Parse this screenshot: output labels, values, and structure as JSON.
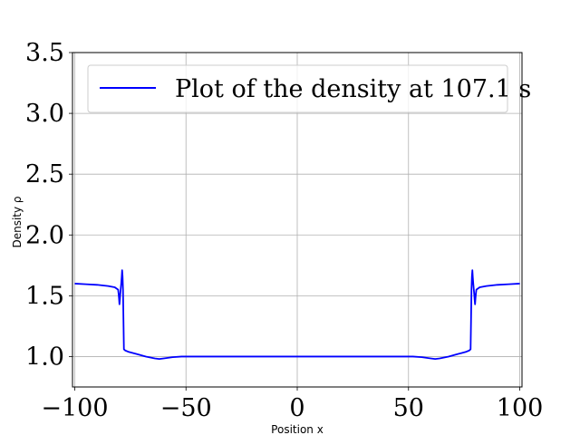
{
  "chart_data": {
    "type": "line",
    "title": "",
    "xlabel": "Position x",
    "ylabel": "Density ρ",
    "xlim": [
      -101,
      101
    ],
    "ylim": [
      0.75,
      3.5
    ],
    "xticks": [
      -100,
      -50,
      0,
      50,
      100
    ],
    "xtick_labels": [
      "−100",
      "−50",
      "0",
      "50",
      "100"
    ],
    "yticks": [
      1.0,
      1.5,
      2.0,
      2.5,
      3.0,
      3.5
    ],
    "ytick_labels": [
      "1.0",
      "1.5",
      "2.0",
      "2.5",
      "3.0",
      "3.5"
    ],
    "grid": true,
    "legend_position": "top-right",
    "series": [
      {
        "name": "Plot of the density at 107.1 s",
        "color": "#0000ff",
        "x": [
          -100,
          -95,
          -90,
          -85,
          -82,
          -80.5,
          -80.3,
          -80.1,
          -79.9,
          -79.7,
          -79.5,
          -79.3,
          -79.1,
          -78.9,
          -78.7,
          -78.5,
          -78.3,
          -78.1,
          -77.9,
          -77.6,
          -77.3,
          -76,
          -72,
          -68,
          -64,
          -62,
          -60,
          -56,
          -52,
          -48,
          -40,
          -20,
          0,
          20,
          40,
          48,
          52,
          56,
          60,
          62,
          64,
          68,
          72,
          76,
          77.3,
          77.6,
          77.9,
          78.1,
          78.3,
          78.5,
          78.7,
          78.9,
          79.1,
          79.3,
          79.5,
          79.7,
          79.9,
          80.1,
          80.3,
          80.5,
          82,
          85,
          90,
          95,
          100
        ],
        "y": [
          1.6,
          1.595,
          1.59,
          1.58,
          1.57,
          1.55,
          1.52,
          1.48,
          1.43,
          1.47,
          1.52,
          1.56,
          1.6,
          1.65,
          1.71,
          1.66,
          1.55,
          1.3,
          1.06,
          1.055,
          1.05,
          1.04,
          1.02,
          1.0,
          0.985,
          0.98,
          0.985,
          0.995,
          1.0,
          1.0,
          1.0,
          1.0,
          1.0,
          1.0,
          1.0,
          1.0,
          1.0,
          0.995,
          0.985,
          0.98,
          0.985,
          1.0,
          1.02,
          1.04,
          1.05,
          1.055,
          1.06,
          1.3,
          1.55,
          1.66,
          1.71,
          1.65,
          1.6,
          1.56,
          1.52,
          1.47,
          1.43,
          1.48,
          1.52,
          1.55,
          1.57,
          1.58,
          1.59,
          1.595,
          1.6
        ]
      }
    ]
  }
}
